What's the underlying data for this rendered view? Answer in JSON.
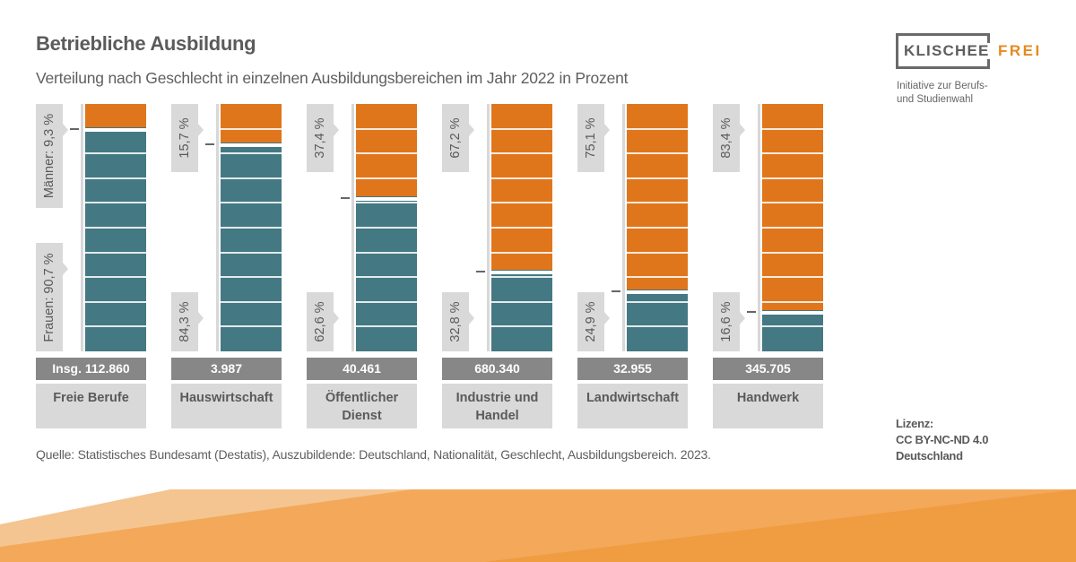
{
  "header": {
    "title": "Betriebliche Ausbildung",
    "subtitle": "Verteilung nach Geschlecht in einzelnen Ausbildungsbereichen im Jahr 2022 in Prozent"
  },
  "logo": {
    "word1": "KLISCHEE",
    "word2": "FREI",
    "tagline_line1": "Initiative zur Berufs-",
    "tagline_line2": "und Studienwahl"
  },
  "colors": {
    "men": "#e0761b",
    "women": "#447883",
    "label_box": "#d9d9d9",
    "total_box": "#878787",
    "accent_orange": "#e68a1f"
  },
  "chart_data": {
    "type": "bar",
    "stacked": true,
    "orientation": "vertical",
    "normalized_to": 100,
    "title": "Betriebliche Ausbildung",
    "subtitle": "Verteilung nach Geschlecht in einzelnen Ausbildungsbereichen im Jahr 2022 in Prozent",
    "ylim": [
      0,
      100
    ],
    "grid_step": 10,
    "categories": [
      "Freie Berufe",
      "Hauswirtschaft",
      "Öffentlicher Dienst",
      "Industrie und Handel",
      "Landwirtschaft",
      "Handwerk"
    ],
    "category_lines": [
      [
        "Freie Berufe"
      ],
      [
        "Hauswirtschaft"
      ],
      [
        "Öffentlicher",
        "Dienst"
      ],
      [
        "Industrie und",
        "Handel"
      ],
      [
        "Landwirtschaft"
      ],
      [
        "Handwerk"
      ]
    ],
    "totals": [
      112860,
      3987,
      40461,
      680340,
      32955,
      345705
    ],
    "total_labels": [
      "Insg. 112.860",
      "3.987",
      "40.461",
      "680.340",
      "32.955",
      "345.705"
    ],
    "series": [
      {
        "name": "Männer",
        "color": "#e0761b",
        "position": "top",
        "values": [
          9.3,
          15.7,
          37.4,
          67.2,
          75.1,
          83.4
        ],
        "labels": [
          "Männer: 9,3 %",
          "15,7 %",
          "37,4 %",
          "67,2 %",
          "75,1 %",
          "83,4 %"
        ]
      },
      {
        "name": "Frauen",
        "color": "#447883",
        "position": "bottom",
        "values": [
          90.7,
          84.3,
          62.6,
          32.8,
          24.9,
          16.6
        ],
        "labels": [
          "Frauen: 90,7 %",
          "84,3 %",
          "62,6 %",
          "32,8 %",
          "24,9 %",
          "16,6 %"
        ]
      }
    ],
    "legend": "inline-labels"
  },
  "footer": {
    "source": "Quelle: Statistisches Bundesamt (Destatis), Auszubildende: Deutschland, Nationalität, Geschlecht, Ausbildungsbereich. 2023.",
    "license_line1": "Lizenz:",
    "license_line2": "CC BY-NC-ND 4.0",
    "license_line3": "Deutschland"
  }
}
